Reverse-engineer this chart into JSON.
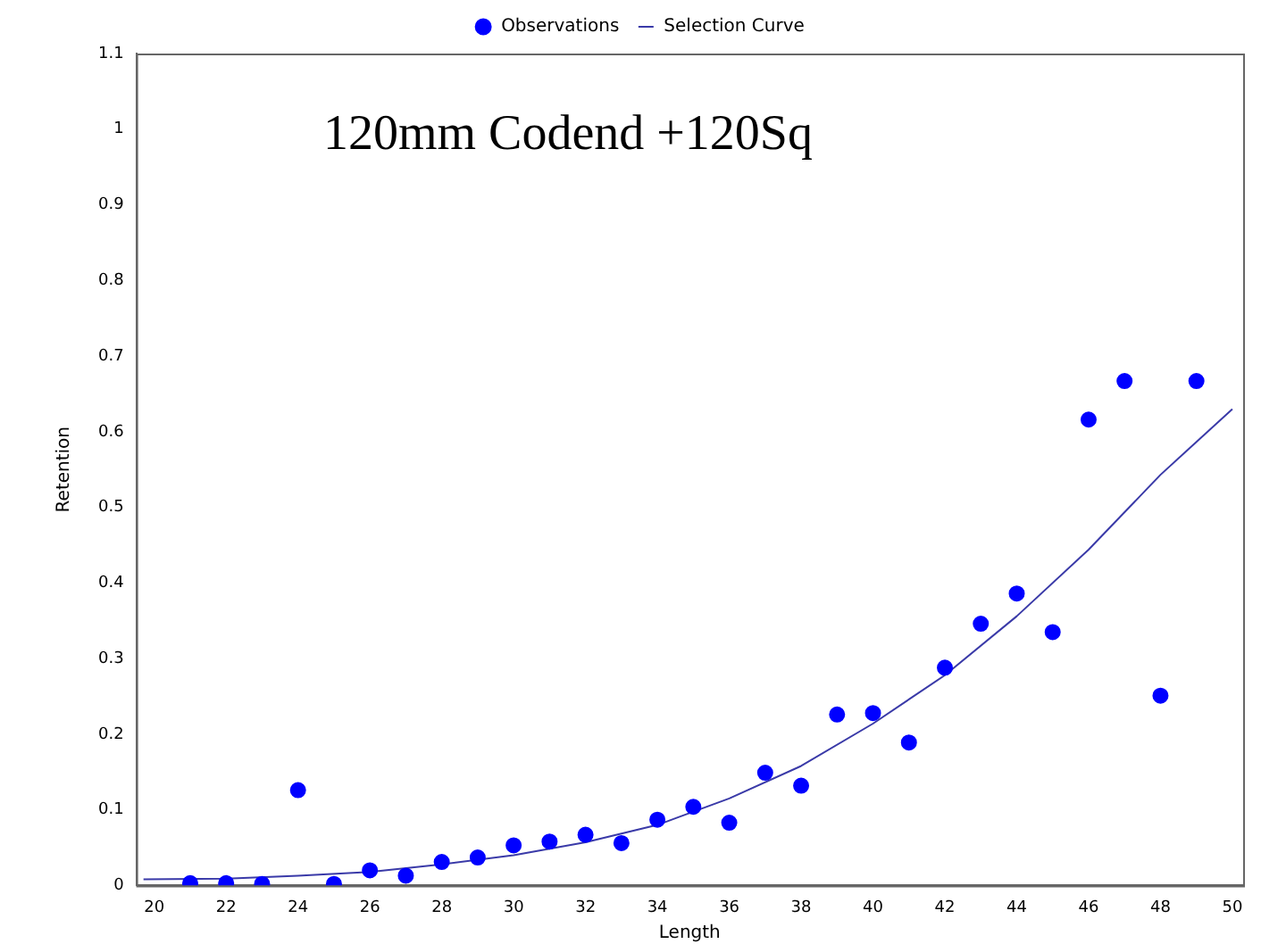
{
  "chart_data": {
    "type": "scatter",
    "title": "120mm Codend +120Sq",
    "xlabel": "Length",
    "ylabel": "Retention",
    "xlim": [
      19.5,
      50.3
    ],
    "xticks": [
      20,
      22,
      24,
      26,
      28,
      30,
      32,
      34,
      36,
      38,
      40,
      42,
      44,
      46,
      48,
      50
    ],
    "ylim": [
      0,
      1.1
    ],
    "yticks": [
      0,
      0.1,
      0.2,
      0.3,
      0.4,
      0.5,
      0.6,
      0.7,
      0.8,
      0.9,
      1,
      1.1
    ],
    "grid": false,
    "legend": "top",
    "series": [
      {
        "name": "Observations",
        "color": "#0000ff",
        "marker": "circle",
        "x": [
          21,
          22,
          23,
          24,
          25,
          26,
          27,
          28,
          29,
          30,
          31,
          32,
          33,
          34,
          35,
          36,
          37,
          38,
          39,
          40,
          41,
          42,
          43,
          44,
          45,
          46,
          47,
          48,
          49
        ],
        "values": [
          0.003,
          0.003,
          0.002,
          0.126,
          0.002,
          0.02,
          0.013,
          0.031,
          0.037,
          0.053,
          0.058,
          0.067,
          0.056,
          0.087,
          0.104,
          0.083,
          0.149,
          0.132,
          0.226,
          0.228,
          0.189,
          0.288,
          0.346,
          0.386,
          0.335,
          0.616,
          0.667,
          0.251,
          0.667
        ]
      },
      {
        "name": "Selection Curve",
        "type": "line",
        "color": "#3a3aa8",
        "marker": "none",
        "x": [
          19.7,
          22,
          24,
          26,
          28,
          30,
          32,
          34,
          36,
          38,
          40,
          42,
          44,
          46,
          48,
          50
        ],
        "values": [
          0.008,
          0.009,
          0.013,
          0.018,
          0.028,
          0.04,
          0.057,
          0.08,
          0.115,
          0.158,
          0.214,
          0.278,
          0.356,
          0.444,
          0.543,
          0.63
        ]
      }
    ]
  }
}
